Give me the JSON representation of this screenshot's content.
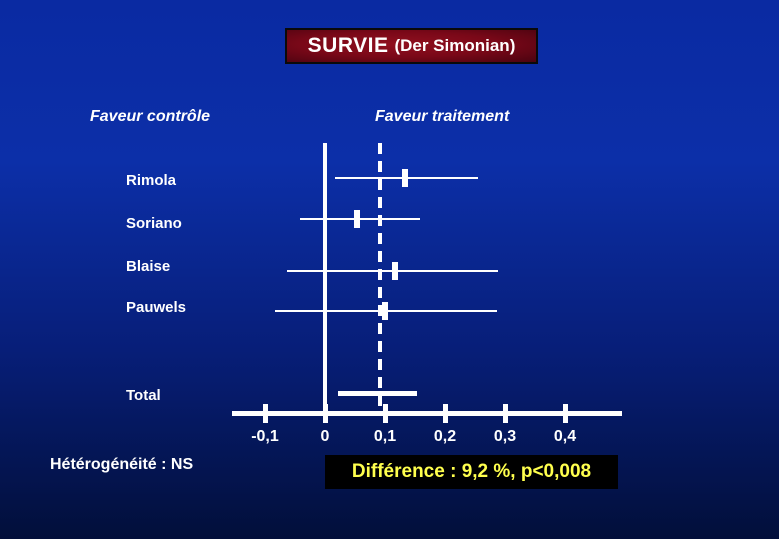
{
  "slide": {
    "title_main": "SURVIE",
    "title_sub": "(Der Simonian)",
    "favor_left": "Faveur contrôle",
    "favor_right": "Faveur traitement",
    "heterogeneity": "Hétérogénéité : NS",
    "difference": "Différence : 9,2 %, p<0,008"
  },
  "colors": {
    "background_top": "#0a2aa2",
    "background_bottom": "#020f3a",
    "title_box_red": "#7a0818",
    "plot_white": "#ffffff",
    "difference_text_yellow": "#ffff4d",
    "difference_box_bg": "#000000"
  },
  "chart_data": {
    "type": "forest",
    "title": "SURVIE (Der Simonian)",
    "xlabel": "",
    "ylabel": "",
    "x_axis": {
      "ticks": [
        "-0,1",
        "0",
        "0,1",
        "0,2",
        "0,3",
        "0,4"
      ],
      "tick_values": [
        -0.1,
        0,
        0.1,
        0.2,
        0.3,
        0.4
      ],
      "range": [
        -0.155,
        0.495
      ]
    },
    "reference_line": 0,
    "pooled_line": 0.092,
    "legend": {
      "left_of_zero": "Faveur contrôle",
      "right_of_zero": "Faveur traitement"
    },
    "studies": [
      {
        "name": "Rimola",
        "estimate": 0.133,
        "ci_low": 0.017,
        "ci_high": 0.255,
        "display": "line"
      },
      {
        "name": "Soriano",
        "estimate": 0.053,
        "ci_low": -0.042,
        "ci_high": 0.158,
        "display": "line"
      },
      {
        "name": "Blaise",
        "estimate": 0.117,
        "ci_low": -0.063,
        "ci_high": 0.288,
        "display": "line"
      },
      {
        "name": "Pauwels",
        "estimate": 0.1,
        "ci_low": -0.083,
        "ci_high": 0.287,
        "display": "line"
      },
      {
        "name": "Total",
        "estimate": 0.092,
        "ci_low": 0.022,
        "ci_high": 0.153,
        "display": "bar"
      }
    ],
    "annotations": {
      "heterogeneity": "Hétérogénéité : NS",
      "difference": "Différence : 9,2 %, p<0,008"
    }
  }
}
